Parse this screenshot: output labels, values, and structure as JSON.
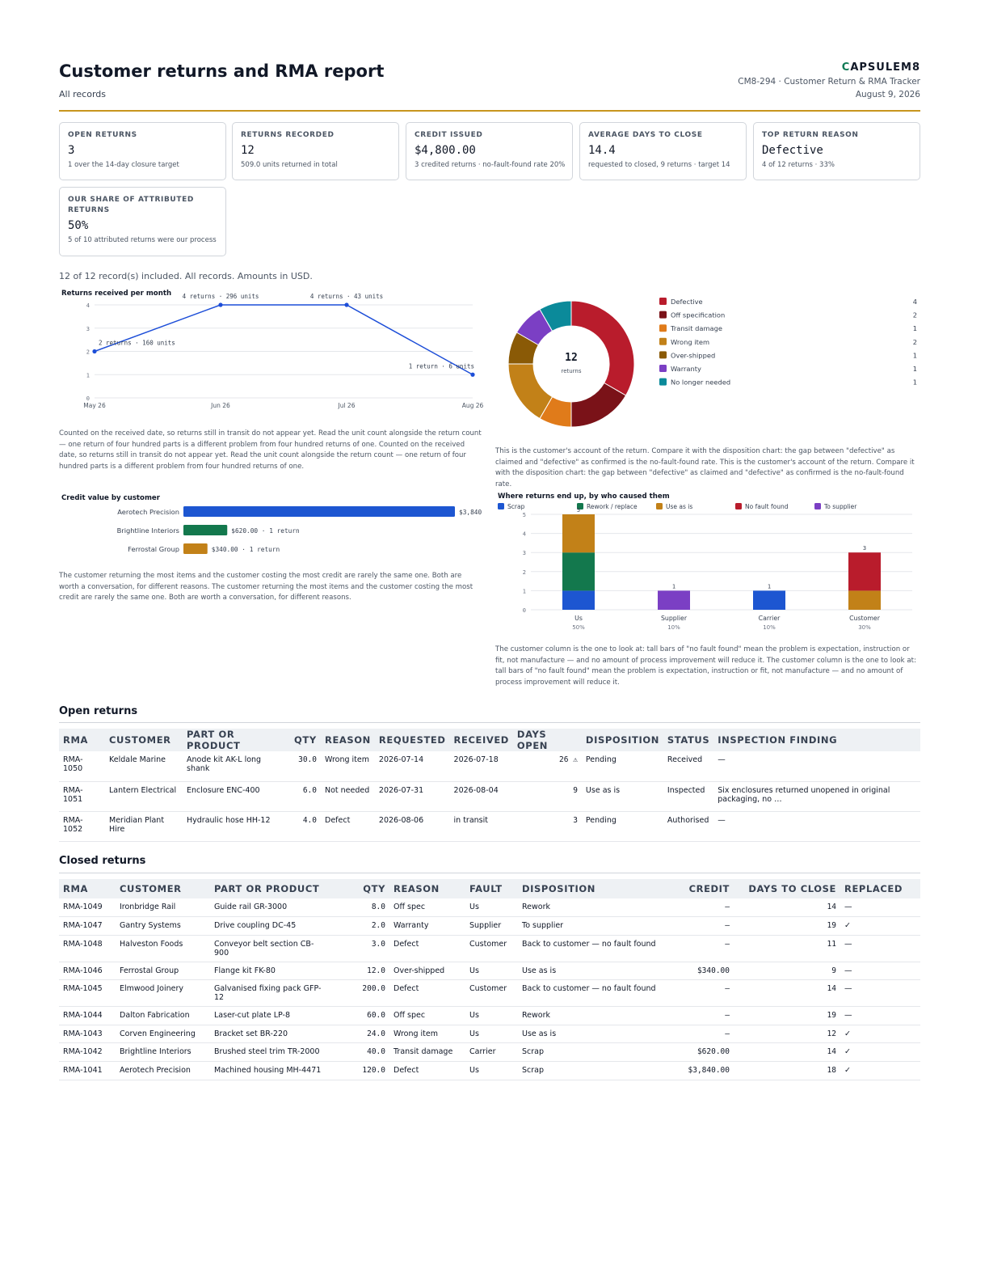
{
  "header": {
    "title": "Customer returns and RMA report",
    "subtitle": "All records",
    "brand_mark": "C",
    "brand_rest": "APSULEM8",
    "doc_id": "CM8-294 · Customer Return & RMA Tracker",
    "date": "August 9, 2026"
  },
  "kpis": [
    {
      "label": "OPEN RETURNS",
      "value": "3",
      "note": "1 over the 14-day closure target"
    },
    {
      "label": "RETURNS RECORDED",
      "value": "12",
      "note": "509.0 units returned in total"
    },
    {
      "label": "CREDIT ISSUED",
      "value": "$4,800.00",
      "note": "3 credited returns · no-fault-found rate 20%"
    },
    {
      "label": "AVERAGE DAYS TO CLOSE",
      "value": "14.4",
      "note": "requested to closed, 9 returns · target 14"
    },
    {
      "label": "TOP RETURN REASON",
      "value": "Defective",
      "note": "4 of 12 returns · 33%"
    },
    {
      "label": "OUR SHARE OF ATTRIBUTED RETURNS",
      "value": "50%",
      "note": "5 of 10 attributed returns were our process"
    }
  ],
  "scope_text": "12 of 12 record(s) included. All records. Amounts in USD.",
  "captions": {
    "monthly": "Counted on the received date, so returns still in transit do not appear yet. Read the unit count alongside the return count — one return of four hundred parts is a different problem from four hundred returns of one. Counted on the received date, so returns still in transit do not appear yet. Read the unit count alongside the return count — one return of four hundred parts is a different problem from four hundred returns of one.",
    "reasons": "This is the customer's account of the return. Compare it with the disposition chart: the gap between \"defective\" as claimed and \"defective\" as confirmed is the no-fault-found rate. This is the customer's account of the return. Compare it with the disposition chart: the gap between \"defective\" as claimed and \"defective\" as confirmed is the no-fault-found rate.",
    "credit": "The customer returning the most items and the customer costing the most credit are rarely the same one. Both are worth a conversation, for different reasons. The customer returning the most items and the customer costing the most credit are rarely the same one. Both are worth a conversation, for different reasons.",
    "disposition": "The customer column is the one to look at: tall bars of \"no fault found\" mean the problem is expectation, instruction or fit, not manufacture — and no amount of process improvement will reduce it. The customer column is the one to look at: tall bars of \"no fault found\" mean the problem is expectation, instruction or fit, not manufacture — and no amount of process improvement will reduce it."
  },
  "chart_data": [
    {
      "type": "line",
      "title": "Returns received per month",
      "x": [
        "May 26",
        "Jun 26",
        "Jul 26",
        "Aug 26"
      ],
      "values": [
        2,
        4,
        4,
        1
      ],
      "point_labels": [
        "2 returns · 160 units",
        "4 returns · 296 units",
        "4 returns · 43 units",
        "1 return · 6 units"
      ],
      "ylim": [
        0,
        4
      ],
      "yticks": [
        "0",
        "1",
        "2",
        "3",
        "4"
      ],
      "grid": true,
      "color": "#1d4ed8"
    },
    {
      "type": "pie",
      "title": "",
      "center_value": "12",
      "center_label": "returns",
      "slices": [
        {
          "name": "Defective",
          "value": 4,
          "color": "#b91c2c"
        },
        {
          "name": "Off specification",
          "value": 2,
          "color": "#7a1218"
        },
        {
          "name": "Transit damage",
          "value": 1,
          "color": "#e07b1a"
        },
        {
          "name": "Wrong item",
          "value": 2,
          "color": "#c28118"
        },
        {
          "name": "Over-shipped",
          "value": 1,
          "color": "#8a5a06"
        },
        {
          "name": "Warranty",
          "value": 1,
          "color": "#7b3fc4"
        },
        {
          "name": "No longer needed",
          "value": 1,
          "color": "#0b8a9a"
        }
      ],
      "legend_placement": "right"
    },
    {
      "type": "bar",
      "title": "Credit value by customer",
      "orientation": "horizontal",
      "categories": [
        "Aerotech Precision",
        "Brightline Interiors",
        "Ferrostal Group"
      ],
      "values": [
        3840,
        620,
        340
      ],
      "value_labels": [
        "$3,840",
        "$620.00 · 1 return",
        "$340.00 · 1 return"
      ],
      "colors": [
        "#1d56d1",
        "#13784d",
        "#c28118"
      ]
    },
    {
      "type": "bar",
      "title": "Where returns end up, by who caused them",
      "stacked": true,
      "categories": [
        "Us",
        "Supplier",
        "Carrier",
        "Customer"
      ],
      "category_sublabels": [
        "50%",
        "10%",
        "10%",
        "30%"
      ],
      "totals": [
        "5",
        "1",
        "1",
        "3"
      ],
      "ylim": [
        0,
        5
      ],
      "yticks": [
        "0",
        "1",
        "2",
        "3",
        "4",
        "5"
      ],
      "series": [
        {
          "name": "Scrap",
          "values": [
            1,
            0,
            1,
            0
          ],
          "color": "#1d56d1"
        },
        {
          "name": "Rework / replace",
          "values": [
            2,
            0,
            0,
            0
          ],
          "color": "#13784d"
        },
        {
          "name": "Use as is",
          "values": [
            2,
            0,
            0,
            1
          ],
          "color": "#c28118"
        },
        {
          "name": "No fault found",
          "values": [
            0,
            0,
            0,
            2
          ],
          "color": "#b91c2c"
        },
        {
          "name": "To supplier",
          "values": [
            0,
            1,
            0,
            0
          ],
          "color": "#7b3fc4"
        }
      ],
      "legend_placement": "top"
    }
  ],
  "open_returns": {
    "title": "Open returns",
    "columns": [
      "RMA",
      "CUSTOMER",
      "PART OR PRODUCT",
      "QTY",
      "REASON",
      "REQUESTED",
      "RECEIVED",
      "DAYS OPEN",
      "DISPOSITION",
      "STATUS",
      "INSPECTION FINDING"
    ],
    "rows": [
      {
        "rma": "RMA-1050",
        "customer": "Keldale Marine",
        "part": "Anode kit AK-L long shank",
        "qty": "30.0",
        "reason": "Wrong item",
        "requested": "2026-07-14",
        "received": "2026-07-18",
        "days_open": "26 ⚠",
        "disposition": "Pending",
        "status": "Received",
        "finding": "—"
      },
      {
        "rma": "RMA-1051",
        "customer": "Lantern Electrical",
        "part": "Enclosure ENC-400",
        "qty": "6.0",
        "reason": "Not needed",
        "requested": "2026-07-31",
        "received": "2026-08-04",
        "days_open": "9",
        "disposition": "Use as is",
        "status": "Inspected",
        "finding": "Six enclosures returned unopened in original packaging, no …"
      },
      {
        "rma": "RMA-1052",
        "customer": "Meridian Plant Hire",
        "part": "Hydraulic hose HH-12",
        "qty": "4.0",
        "reason": "Defect",
        "requested": "2026-08-06",
        "received": "in transit",
        "days_open": "3",
        "disposition": "Pending",
        "status": "Authorised",
        "finding": "—"
      }
    ]
  },
  "closed_returns": {
    "title": "Closed returns",
    "columns": [
      "RMA",
      "CUSTOMER",
      "PART OR PRODUCT",
      "QTY",
      "REASON",
      "FAULT",
      "DISPOSITION",
      "CREDIT",
      "DAYS TO CLOSE",
      "REPLACED"
    ],
    "rows": [
      {
        "rma": "RMA-1049",
        "customer": "Ironbridge Rail",
        "part": "Guide rail GR-3000",
        "qty": "8.0",
        "reason": "Off spec",
        "fault": "Us",
        "disposition": "Rework",
        "credit": "–",
        "days": "14",
        "replaced": "—"
      },
      {
        "rma": "RMA-1047",
        "customer": "Gantry Systems",
        "part": "Drive coupling DC-45",
        "qty": "2.0",
        "reason": "Warranty",
        "fault": "Supplier",
        "disposition": "To supplier",
        "credit": "–",
        "days": "19",
        "replaced": "✓"
      },
      {
        "rma": "RMA-1048",
        "customer": "Halveston Foods",
        "part": "Conveyor belt section CB-900",
        "qty": "3.0",
        "reason": "Defect",
        "fault": "Customer",
        "disposition": "Back to customer — no fault found",
        "credit": "–",
        "days": "11",
        "replaced": "—"
      },
      {
        "rma": "RMA-1046",
        "customer": "Ferrostal Group",
        "part": "Flange kit FK-80",
        "qty": "12.0",
        "reason": "Over-shipped",
        "fault": "Us",
        "disposition": "Use as is",
        "credit": "$340.00",
        "days": "9",
        "replaced": "—"
      },
      {
        "rma": "RMA-1045",
        "customer": "Elmwood Joinery",
        "part": "Galvanised fixing pack GFP-12",
        "qty": "200.0",
        "reason": "Defect",
        "fault": "Customer",
        "disposition": "Back to customer — no fault found",
        "credit": "–",
        "days": "14",
        "replaced": "—"
      },
      {
        "rma": "RMA-1044",
        "customer": "Dalton Fabrication",
        "part": "Laser-cut plate LP-8",
        "qty": "60.0",
        "reason": "Off spec",
        "fault": "Us",
        "disposition": "Rework",
        "credit": "–",
        "days": "19",
        "replaced": "—"
      },
      {
        "rma": "RMA-1043",
        "customer": "Corven Engineering",
        "part": "Bracket set BR-220",
        "qty": "24.0",
        "reason": "Wrong item",
        "fault": "Us",
        "disposition": "Use as is",
        "credit": "–",
        "days": "12",
        "replaced": "✓"
      },
      {
        "rma": "RMA-1042",
        "customer": "Brightline Interiors",
        "part": "Brushed steel trim TR-2000",
        "qty": "40.0",
        "reason": "Transit damage",
        "fault": "Carrier",
        "disposition": "Scrap",
        "credit": "$620.00",
        "days": "14",
        "replaced": "✓"
      },
      {
        "rma": "RMA-1041",
        "customer": "Aerotech Precision",
        "part": "Machined housing MH-4471",
        "qty": "120.0",
        "reason": "Defect",
        "fault": "Us",
        "disposition": "Scrap",
        "credit": "$3,840.00",
        "days": "18",
        "replaced": "✓"
      }
    ]
  }
}
